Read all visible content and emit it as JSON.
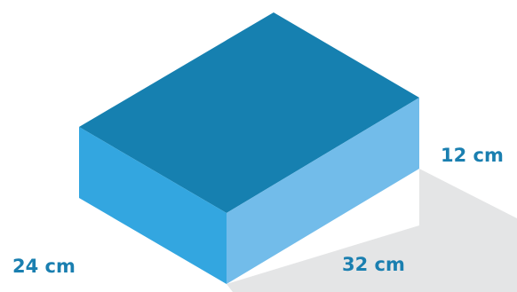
{
  "dimensions": {
    "height": "12 cm",
    "width": "24 cm",
    "length": "32 cm"
  },
  "colors": {
    "top_face": "#1680B0",
    "left_face": "#33A6E0",
    "right_face": "#72BCEA",
    "shadow": "#E4E5E6",
    "label": "#1A7FB0"
  }
}
